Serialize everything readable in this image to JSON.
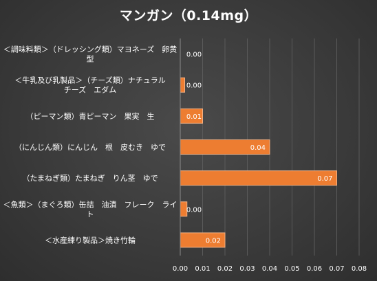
{
  "chart_data": {
    "type": "bar",
    "orientation": "horizontal",
    "title": "マンガン（0.14mg）",
    "categories": [
      [
        "＜調味料類＞（ドレッシング類）マヨネーズ　卵黄",
        "型"
      ],
      [
        "＜牛乳及び乳製品＞（チーズ類）ナチュラル",
        "チーズ　エダム"
      ],
      [
        "（ピーマン類）青ピーマン　果実　生"
      ],
      [
        "（にんじん類）にんじん　根　皮むき　ゆで"
      ],
      [
        "（たまねぎ類）たまねぎ　りん茎　ゆで"
      ],
      [
        "＜魚類＞（まぐろ類）缶詰　油漬　フレーク　ライ",
        "ト"
      ],
      [
        "＜水産練り製品＞焼き竹輪"
      ]
    ],
    "values": [
      0.0,
      0.002,
      0.01,
      0.04,
      0.07,
      0.003,
      0.02
    ],
    "data_labels": [
      "0.00",
      "0.00",
      "0.01",
      "0.04",
      "0.07",
      "0.00",
      "0.02"
    ],
    "x_ticks": [
      "0.00",
      "0.01",
      "0.02",
      "0.03",
      "0.04",
      "0.05",
      "0.06",
      "0.07",
      "0.08"
    ],
    "xlim": [
      0,
      0.08
    ],
    "grid": true,
    "legend": "none",
    "colors": {
      "bar": "#ed7d31",
      "bar_edge": "#f4b183",
      "text": "#ffffff",
      "grid": "#5a5a5a"
    }
  }
}
